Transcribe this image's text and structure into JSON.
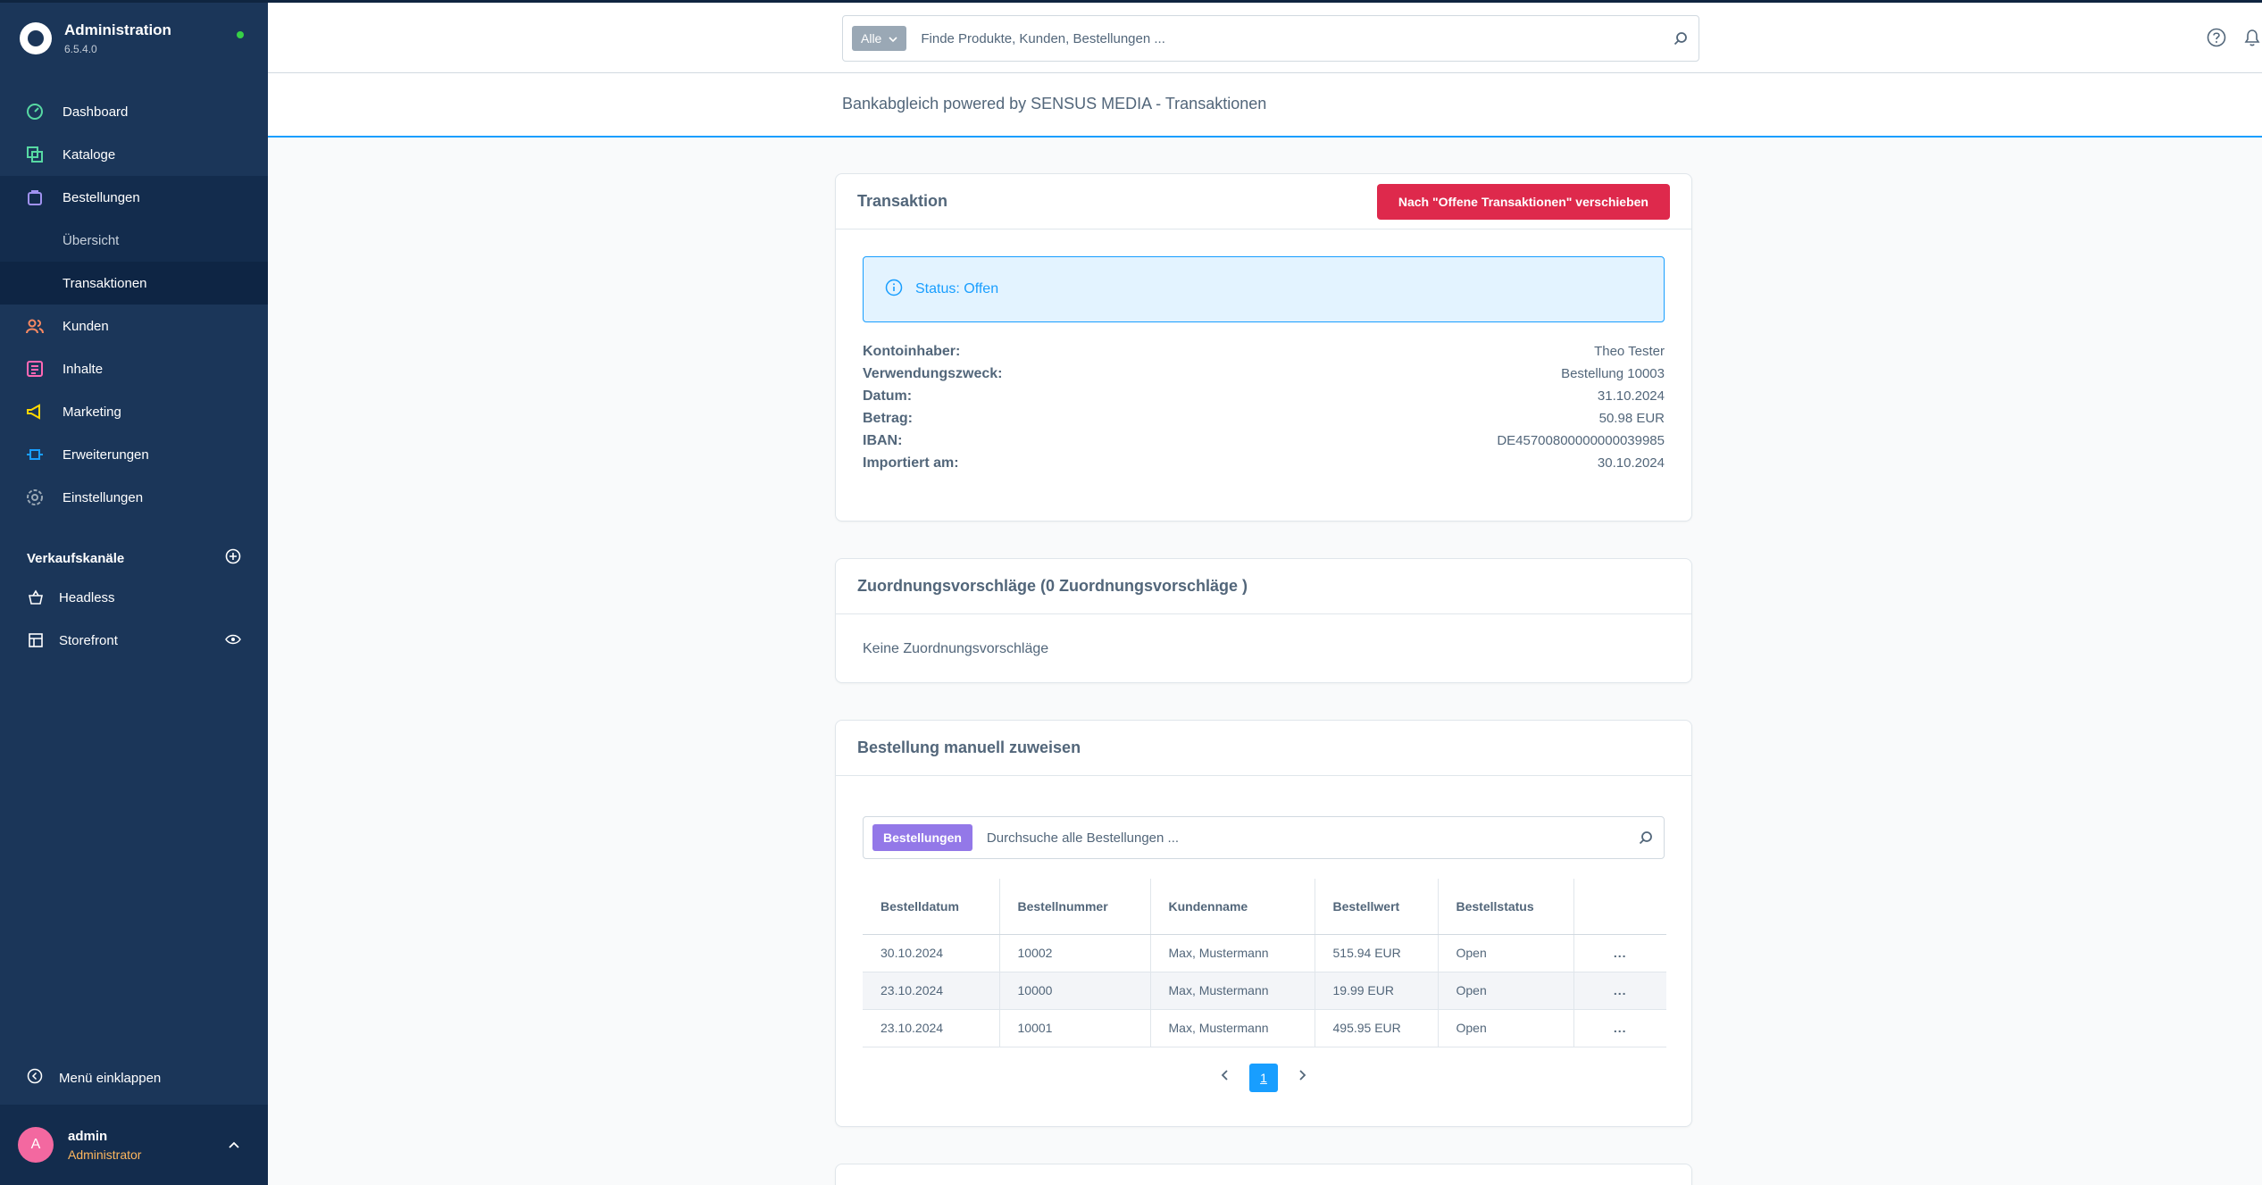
{
  "app": {
    "title": "Administration",
    "version": "6.5.4.0"
  },
  "sidebar": {
    "items": [
      {
        "label": "Dashboard",
        "icon": "dashboard-icon",
        "color": "#57d9a3"
      },
      {
        "label": "Kataloge",
        "icon": "catalog-icon",
        "color": "#57d9a3"
      },
      {
        "label": "Bestellungen",
        "icon": "orders-icon",
        "color": "#a092f0"
      },
      {
        "label": "Übersicht"
      },
      {
        "label": "Transaktionen"
      },
      {
        "label": "Kunden",
        "icon": "customers-icon",
        "color": "#f88962"
      },
      {
        "label": "Inhalte",
        "icon": "content-icon",
        "color": "#ff68b4"
      },
      {
        "label": "Marketing",
        "icon": "marketing-icon",
        "color": "#ffd700"
      },
      {
        "label": "Erweiterungen",
        "icon": "extensions-icon",
        "color": "#189eff"
      },
      {
        "label": "Einstellungen",
        "icon": "settings-icon",
        "color": "#9aa8b5"
      }
    ],
    "sales_channels_title": "Verkaufskanäle",
    "channels": [
      {
        "label": "Headless",
        "icon": "basket-icon"
      },
      {
        "label": "Storefront",
        "icon": "storefront-icon"
      }
    ],
    "collapse_label": "Menü einklappen",
    "user": {
      "initial": "A",
      "name": "admin",
      "role": "Administrator"
    }
  },
  "search": {
    "tag": "Alle",
    "placeholder": "Finde Produkte, Kunden, Bestellungen ..."
  },
  "page_title": "Bankabgleich powered by SENSUS MEDIA - Transaktionen",
  "transaction": {
    "title": "Transaktion",
    "move_button": "Nach \"Offene Transaktionen\" verschieben",
    "status": "Status: Offen",
    "fields": [
      {
        "label": "Kontoinhaber:",
        "value": "Theo Tester"
      },
      {
        "label": "Verwendungszweck:",
        "value": "Bestellung 10003"
      },
      {
        "label": "Datum:",
        "value": "31.10.2024"
      },
      {
        "label": "Betrag:",
        "value": "50.98 EUR"
      },
      {
        "label": "IBAN:",
        "value": "DE45700800000000039985"
      },
      {
        "label": "Importiert am:",
        "value": "30.10.2024"
      }
    ]
  },
  "suggestions": {
    "title": "Zuordnungsvorschläge (0 Zuordnungsvorschläge )",
    "empty": "Keine Zuordnungsvorschläge"
  },
  "manual": {
    "title": "Bestellung manuell zuweisen",
    "search_tag": "Bestellungen",
    "search_placeholder": "Durchsuche alle Bestellungen ...",
    "columns": [
      "Bestelldatum",
      "Bestellnummer",
      "Kundenname",
      "Bestellwert",
      "Bestellstatus"
    ],
    "rows": [
      {
        "date": "30.10.2024",
        "number": "10002",
        "customer": "Max, Mustermann",
        "value": "515.94 EUR",
        "status": "Open"
      },
      {
        "date": "23.10.2024",
        "number": "10000",
        "customer": "Max, Mustermann",
        "value": "19.99 EUR",
        "status": "Open"
      },
      {
        "date": "23.10.2024",
        "number": "10001",
        "customer": "Max, Mustermann",
        "value": "495.95 EUR",
        "status": "Open"
      }
    ],
    "row_action": "...",
    "page": "1"
  }
}
